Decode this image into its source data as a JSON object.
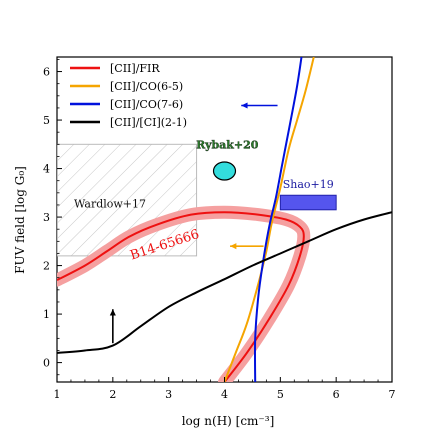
{
  "chart_data": {
    "type": "line",
    "title": "",
    "xlabel": "log n(H) [cm⁻³]",
    "ylabel": "FUV field [log G₀]",
    "xlim": [
      1,
      7
    ],
    "ylim": [
      -0.4,
      6.3
    ],
    "xticks": [
      1,
      2,
      3,
      4,
      5,
      6,
      7
    ],
    "yticks": [
      0,
      1,
      2,
      3,
      4,
      5,
      6
    ],
    "grid": false,
    "legend_position": "top-left",
    "series": [
      {
        "name": "[CII]/FIR",
        "color": "#ee1111",
        "x": [
          4.0,
          4.4,
          4.8,
          5.15,
          5.35,
          5.42,
          5.35,
          5.1,
          4.6,
          4.0,
          3.4,
          2.8,
          2.3,
          1.9,
          1.5,
          1.0
        ],
        "y": [
          -0.4,
          0.2,
          0.9,
          1.6,
          2.2,
          2.6,
          2.8,
          2.95,
          3.05,
          3.1,
          3.05,
          2.85,
          2.6,
          2.3,
          2.0,
          1.7
        ]
      },
      {
        "name": "[CII]/CO(6-5)",
        "color": "#f5a500",
        "x": [
          4.0,
          4.2,
          4.4,
          4.6,
          4.75,
          4.85,
          5.0,
          5.15,
          5.3,
          5.45,
          5.6
        ],
        "y": [
          -0.4,
          0.2,
          0.8,
          1.6,
          2.3,
          2.9,
          3.6,
          4.4,
          5.0,
          5.6,
          6.3
        ]
      },
      {
        "name": "[CII]/CO(7-6)",
        "color": "#0011dd",
        "x": [
          4.55,
          4.55,
          4.6,
          4.68,
          4.8,
          4.92,
          5.02,
          5.12,
          5.22,
          5.3,
          5.38
        ],
        "y": [
          -0.4,
          0.5,
          1.3,
          2.0,
          2.8,
          3.4,
          4.0,
          4.6,
          5.2,
          5.7,
          6.3
        ]
      },
      {
        "name": "[CII]/[CI](2-1)",
        "color": "#000000",
        "x": [
          1.0,
          1.5,
          2.0,
          2.5,
          3.0,
          3.5,
          4.0,
          4.5,
          5.0,
          5.5,
          6.0,
          6.5,
          7.0
        ],
        "y": [
          0.2,
          0.25,
          0.35,
          0.75,
          1.15,
          1.45,
          1.72,
          2.0,
          2.25,
          2.5,
          2.75,
          2.95,
          3.1
        ]
      }
    ],
    "regions": [
      {
        "label": "Wardlow+17",
        "x": [
          1,
          3.5
        ],
        "y": [
          2.2,
          4.5
        ],
        "style": "hatched"
      },
      {
        "label": "Shao+19",
        "x": [
          5.0,
          6.0
        ],
        "y": [
          3.15,
          3.45
        ],
        "color": "#5555ee"
      }
    ],
    "points": [
      {
        "label": "Rybak+20",
        "x": 4.0,
        "y": 3.95,
        "color": "#33dddd"
      }
    ],
    "annotations": [
      {
        "text": "B14-65666",
        "x": 2.95,
        "y": 2.35,
        "color": "#ee1111"
      }
    ]
  }
}
